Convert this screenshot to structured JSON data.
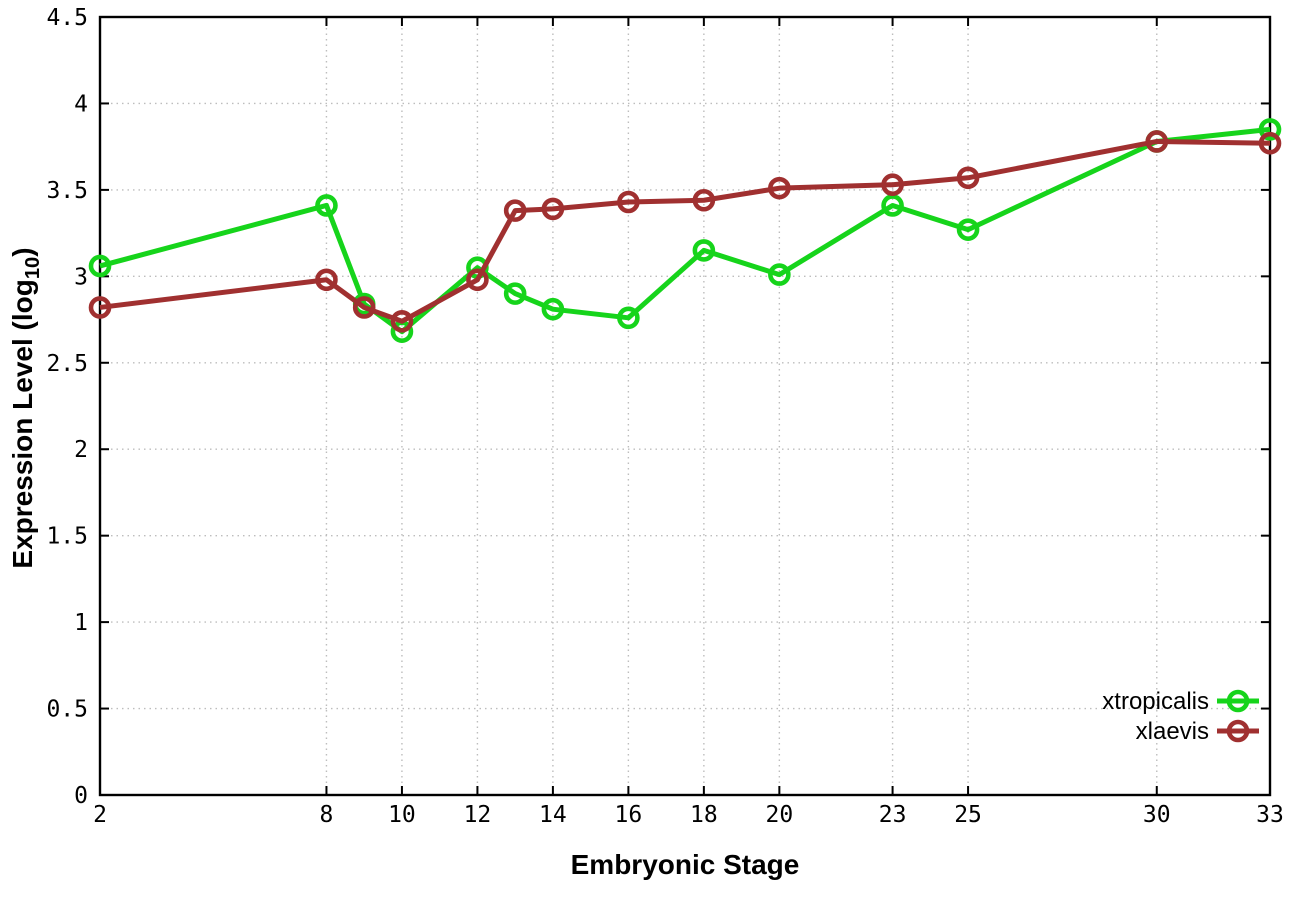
{
  "chart_data": {
    "type": "line",
    "title": "",
    "xlabel": "Embryonic Stage",
    "ylabel": "Expression Level (log10)",
    "ylabel_prefix": "Expression Level (log",
    "ylabel_sub": "10",
    "ylabel_suffix": ")",
    "xlim": [
      2,
      33
    ],
    "ylim": [
      0,
      4.5
    ],
    "grid": true,
    "legend_position": "bottom-right",
    "x": [
      2,
      8,
      9,
      10,
      12,
      13,
      14,
      16,
      18,
      20,
      23,
      25,
      30,
      33
    ],
    "xtick_values": [
      2,
      8,
      10,
      12,
      14,
      16,
      18,
      20,
      23,
      25,
      30,
      33
    ],
    "xtick_labels": [
      "2",
      "8",
      "10",
      "12",
      "14",
      "16",
      "18",
      "20",
      "23",
      "25",
      "30",
      "33"
    ],
    "ytick_values": [
      0,
      0.5,
      1,
      1.5,
      2,
      2.5,
      3,
      3.5,
      4,
      4.5
    ],
    "ytick_labels": [
      "0",
      "0.5",
      "1",
      "1.5",
      "2",
      "2.5",
      "3",
      "3.5",
      "4",
      "4.5"
    ],
    "series": [
      {
        "name": "xtropicalis",
        "color": "#16d41b",
        "values": [
          3.06,
          3.41,
          2.84,
          2.68,
          3.05,
          2.9,
          2.81,
          2.76,
          3.15,
          3.01,
          3.41,
          3.27,
          3.78,
          3.85
        ]
      },
      {
        "name": "xlaevis",
        "color": "#a03030",
        "values": [
          2.82,
          2.98,
          2.82,
          2.74,
          2.98,
          3.38,
          3.39,
          3.43,
          3.44,
          3.51,
          3.53,
          3.57,
          3.78,
          3.77
        ]
      }
    ],
    "colors": {
      "background": "#ffffff",
      "axis": "#000000",
      "grid": "#bdbdbd",
      "tick_text": "#000000"
    }
  }
}
